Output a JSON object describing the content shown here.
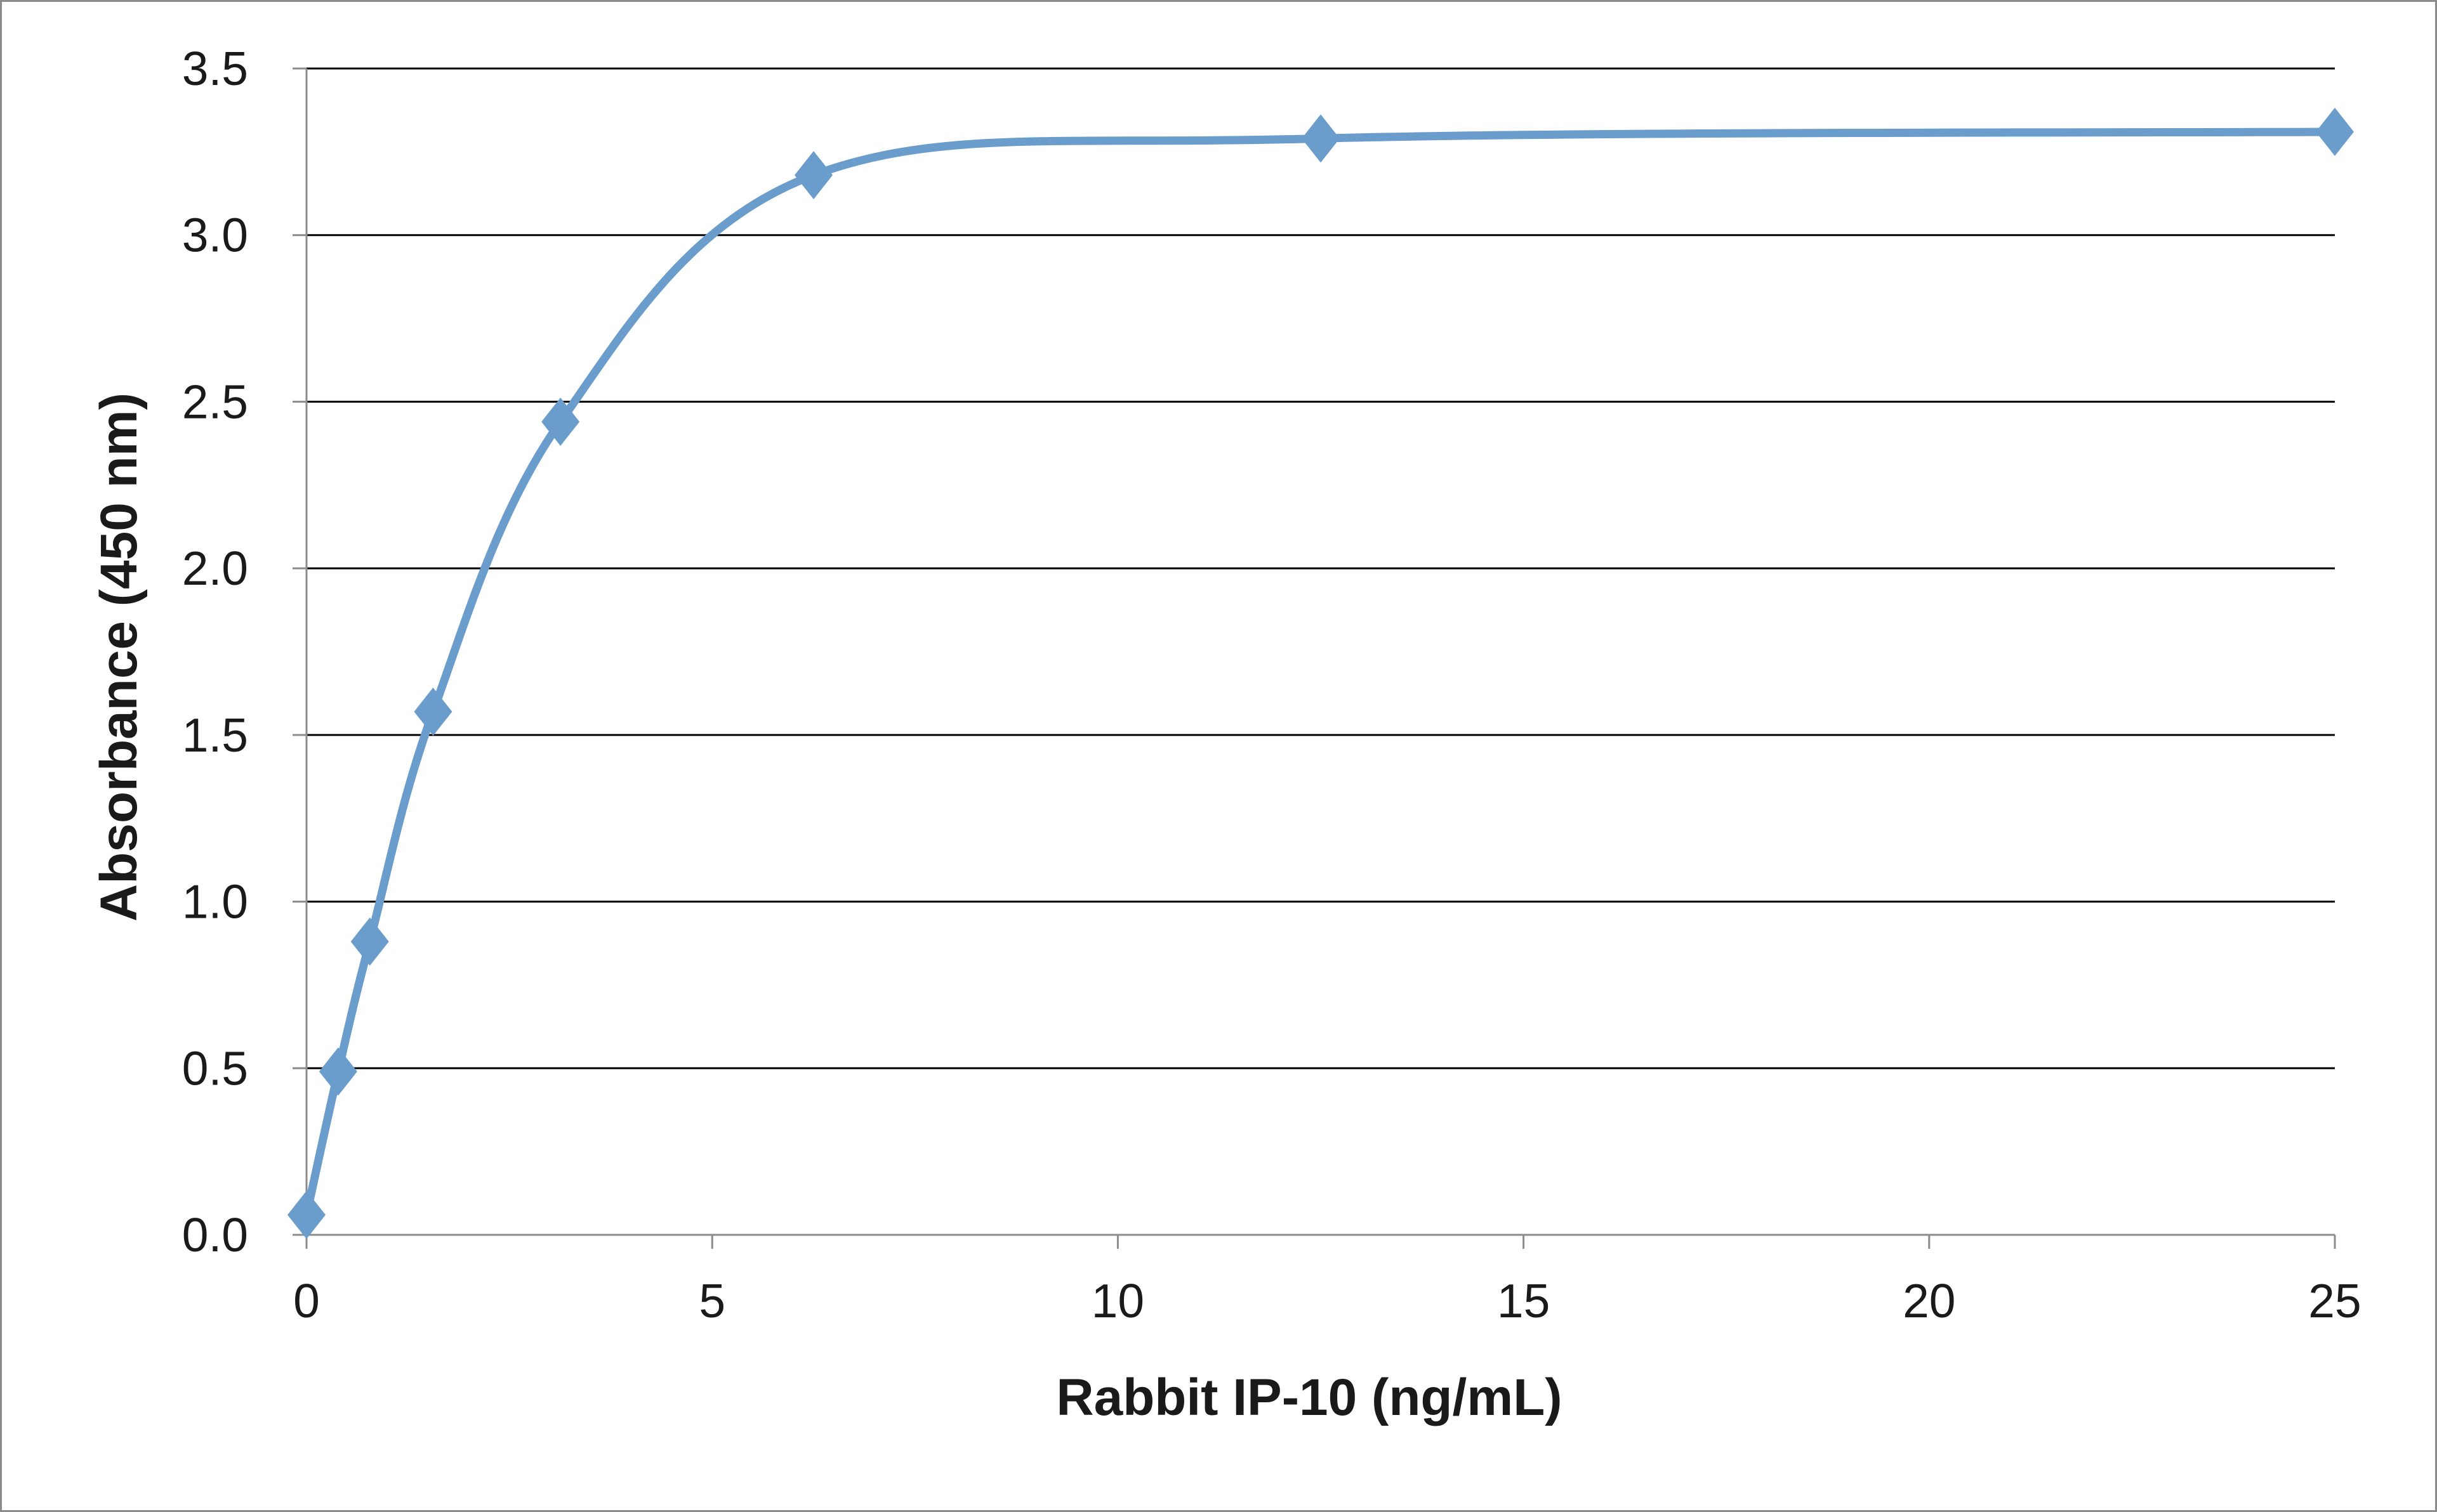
{
  "chart_data": {
    "type": "line",
    "title": "",
    "xlabel": "Rabbit IP-10 (ng/mL)",
    "ylabel": "Absorbance  (450 nm)",
    "xlim": [
      0,
      25
    ],
    "ylim": [
      0,
      3.5
    ],
    "x_ticks": [
      "0",
      "5",
      "10",
      "15",
      "20",
      "25"
    ],
    "y_ticks": [
      "0.0",
      "0.5",
      "1.0",
      "1.5",
      "2.0",
      "2.5",
      "3.0",
      "3.5"
    ],
    "grid": "horizontal",
    "legend": "none",
    "line_color": "#6a9ccc",
    "series": [
      {
        "x": [
          0,
          0.39,
          0.78,
          1.56,
          3.13,
          6.25,
          12.5,
          25
        ],
        "y": [
          0.06,
          0.49,
          0.88,
          1.57,
          2.44,
          3.18,
          3.29,
          3.31
        ],
        "marker": "diamond",
        "smooth": true
      }
    ]
  }
}
